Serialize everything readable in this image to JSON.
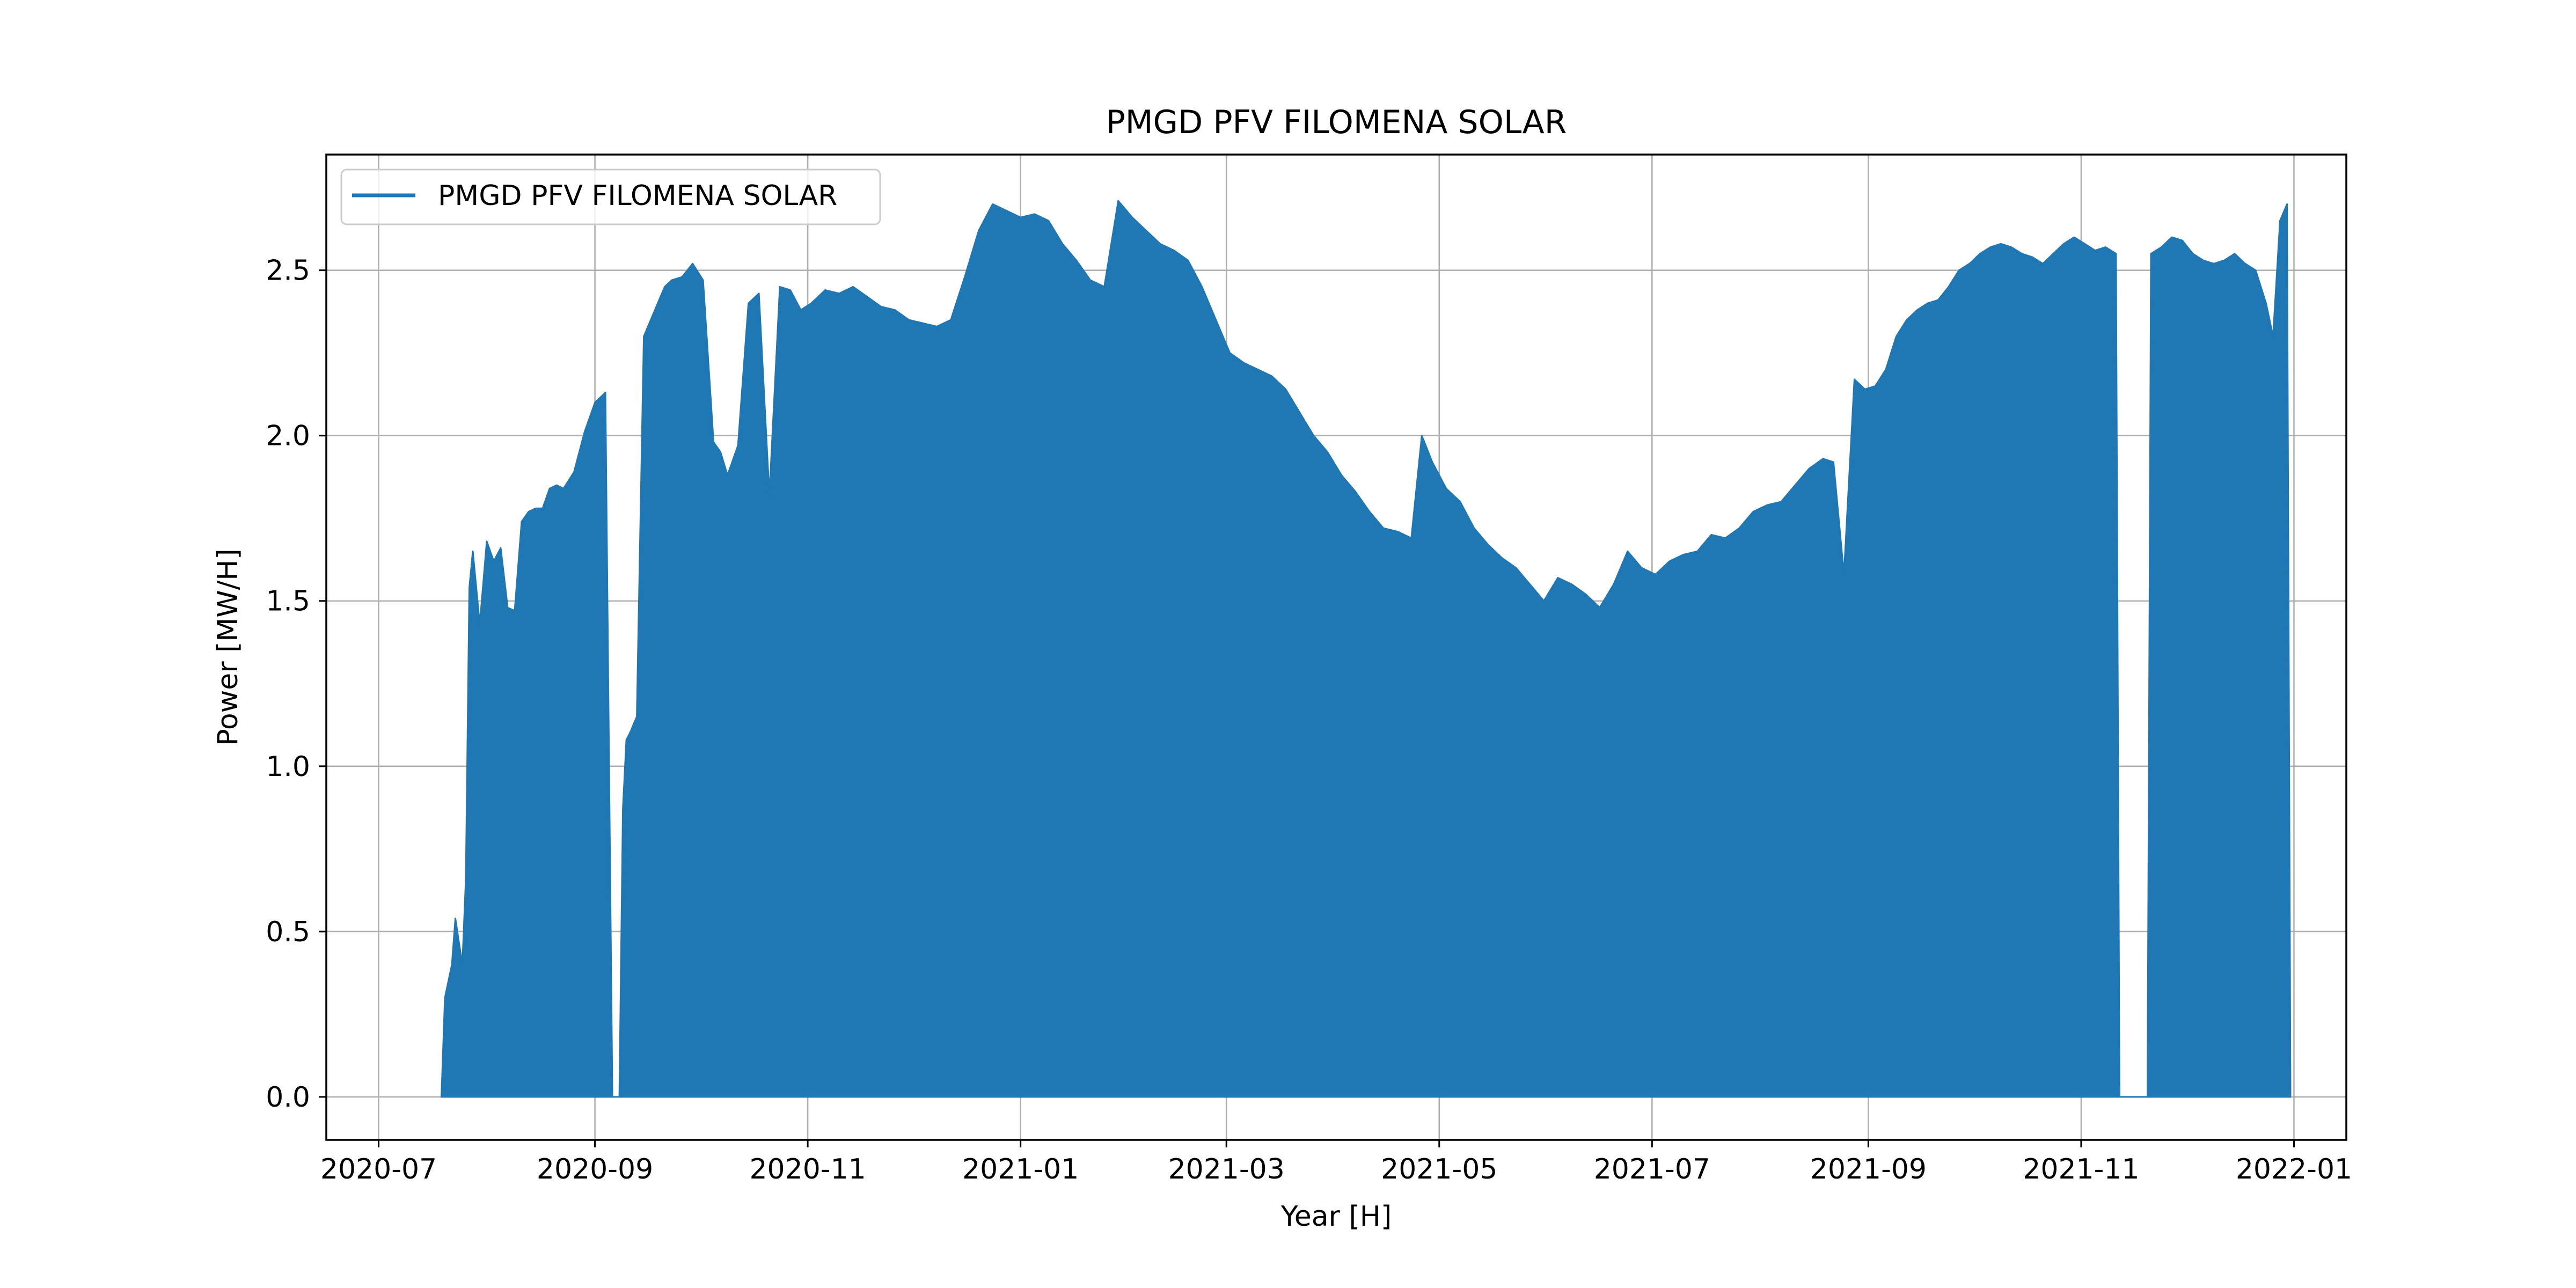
{
  "chart_data": {
    "type": "area",
    "title": "PMGD PFV FILOMENA SOLAR",
    "xlabel": "Year [H]",
    "ylabel": "Power [MW/H]",
    "xlim": [
      "2020-06-16",
      "2022-01-16"
    ],
    "ylim": [
      -0.13,
      2.85
    ],
    "x_ticks": [
      "2020-07",
      "2020-09",
      "2020-11",
      "2021-01",
      "2021-03",
      "2021-05",
      "2021-07",
      "2021-09",
      "2021-11",
      "2022-01"
    ],
    "y_ticks": [
      0.0,
      0.5,
      1.0,
      1.5,
      2.0,
      2.5
    ],
    "y_tick_labels": [
      "0.0",
      "0.5",
      "1.0",
      "1.5",
      "2.0",
      "2.5"
    ],
    "grid": true,
    "legend": {
      "position": "top-left",
      "entries": [
        "PMGD PFV FILOMENA SOLAR"
      ]
    },
    "series": [
      {
        "name": "PMGD PFV FILOMENA SOLAR",
        "color": "#1f77b4",
        "x": [
          "2020-07-19",
          "2020-07-20",
          "2020-07-22",
          "2020-07-23",
          "2020-07-25",
          "2020-07-26",
          "2020-07-27",
          "2020-07-28",
          "2020-07-30",
          "2020-08-01",
          "2020-08-03",
          "2020-08-05",
          "2020-08-07",
          "2020-08-09",
          "2020-08-11",
          "2020-08-13",
          "2020-08-15",
          "2020-08-17",
          "2020-08-19",
          "2020-08-21",
          "2020-08-23",
          "2020-08-26",
          "2020-08-29",
          "2020-09-01",
          "2020-09-04",
          "2020-09-06",
          "2020-09-08",
          "2020-09-09",
          "2020-09-10",
          "2020-09-11",
          "2020-09-13",
          "2020-09-15",
          "2020-09-17",
          "2020-09-19",
          "2020-09-21",
          "2020-09-23",
          "2020-09-26",
          "2020-09-29",
          "2020-10-02",
          "2020-10-05",
          "2020-10-07",
          "2020-10-09",
          "2020-10-12",
          "2020-10-15",
          "2020-10-18",
          "2020-10-21",
          "2020-10-24",
          "2020-10-27",
          "2020-10-30",
          "2020-11-02",
          "2020-11-06",
          "2020-11-10",
          "2020-11-14",
          "2020-11-18",
          "2020-11-22",
          "2020-11-26",
          "2020-11-30",
          "2020-12-04",
          "2020-12-08",
          "2020-12-12",
          "2020-12-16",
          "2020-12-20",
          "2020-12-24",
          "2020-12-28",
          "2021-01-01",
          "2021-01-05",
          "2021-01-09",
          "2021-01-13",
          "2021-01-17",
          "2021-01-21",
          "2021-01-25",
          "2021-01-29",
          "2021-02-02",
          "2021-02-06",
          "2021-02-10",
          "2021-02-14",
          "2021-02-18",
          "2021-02-22",
          "2021-02-26",
          "2021-03-02",
          "2021-03-06",
          "2021-03-10",
          "2021-03-14",
          "2021-03-18",
          "2021-03-22",
          "2021-03-26",
          "2021-03-30",
          "2021-04-03",
          "2021-04-07",
          "2021-04-11",
          "2021-04-15",
          "2021-04-19",
          "2021-04-23",
          "2021-04-26",
          "2021-04-29",
          "2021-05-03",
          "2021-05-07",
          "2021-05-11",
          "2021-05-15",
          "2021-05-19",
          "2021-05-23",
          "2021-05-27",
          "2021-05-31",
          "2021-06-04",
          "2021-06-08",
          "2021-06-12",
          "2021-06-16",
          "2021-06-20",
          "2021-06-24",
          "2021-06-28",
          "2021-07-02",
          "2021-07-06",
          "2021-07-10",
          "2021-07-14",
          "2021-07-18",
          "2021-07-22",
          "2021-07-26",
          "2021-07-30",
          "2021-08-03",
          "2021-08-07",
          "2021-08-11",
          "2021-08-15",
          "2021-08-19",
          "2021-08-22",
          "2021-08-25",
          "2021-08-28",
          "2021-08-31",
          "2021-09-03",
          "2021-09-06",
          "2021-09-09",
          "2021-09-12",
          "2021-09-15",
          "2021-09-18",
          "2021-09-21",
          "2021-09-24",
          "2021-09-27",
          "2021-09-30",
          "2021-10-03",
          "2021-10-06",
          "2021-10-09",
          "2021-10-12",
          "2021-10-15",
          "2021-10-18",
          "2021-10-21",
          "2021-10-24",
          "2021-10-27",
          "2021-10-30",
          "2021-11-02",
          "2021-11-05",
          "2021-11-08",
          "2021-11-11",
          "2021-11-12",
          "2021-11-20",
          "2021-11-21",
          "2021-11-24",
          "2021-11-27",
          "2021-11-30",
          "2021-12-03",
          "2021-12-06",
          "2021-12-09",
          "2021-12-12",
          "2021-12-15",
          "2021-12-18",
          "2021-12-21",
          "2021-12-24",
          "2021-12-26",
          "2021-12-28",
          "2021-12-30",
          "2021-12-31"
        ],
        "y": [
          0.0,
          0.3,
          0.4,
          0.54,
          0.4,
          0.66,
          1.54,
          1.65,
          1.43,
          1.68,
          1.62,
          1.66,
          1.48,
          1.47,
          1.74,
          1.77,
          1.78,
          1.78,
          1.84,
          1.85,
          1.84,
          1.89,
          2.01,
          2.1,
          2.13,
          0.0,
          0.0,
          0.87,
          1.08,
          1.1,
          1.15,
          2.3,
          2.35,
          2.4,
          2.45,
          2.47,
          2.48,
          2.52,
          2.47,
          1.98,
          1.95,
          1.88,
          1.97,
          2.4,
          2.43,
          1.82,
          2.45,
          2.44,
          2.38,
          2.4,
          2.44,
          2.43,
          2.45,
          2.42,
          2.39,
          2.38,
          2.35,
          2.34,
          2.33,
          2.35,
          2.48,
          2.62,
          2.7,
          2.68,
          2.66,
          2.67,
          2.65,
          2.58,
          2.53,
          2.47,
          2.45,
          2.71,
          2.66,
          2.62,
          2.58,
          2.56,
          2.53,
          2.45,
          2.35,
          2.25,
          2.22,
          2.2,
          2.18,
          2.14,
          2.07,
          2.0,
          1.95,
          1.88,
          1.83,
          1.77,
          1.72,
          1.71,
          1.69,
          2.0,
          1.92,
          1.84,
          1.8,
          1.72,
          1.67,
          1.63,
          1.6,
          1.55,
          1.5,
          1.57,
          1.55,
          1.52,
          1.48,
          1.55,
          1.65,
          1.6,
          1.58,
          1.62,
          1.64,
          1.65,
          1.7,
          1.69,
          1.72,
          1.77,
          1.79,
          1.8,
          1.85,
          1.9,
          1.93,
          1.92,
          1.58,
          2.17,
          2.14,
          2.15,
          2.2,
          2.3,
          2.35,
          2.38,
          2.4,
          2.41,
          2.45,
          2.5,
          2.52,
          2.55,
          2.57,
          2.58,
          2.57,
          2.55,
          2.54,
          2.52,
          2.55,
          2.58,
          2.6,
          2.58,
          2.56,
          2.57,
          2.55,
          0.0,
          0.0,
          2.55,
          2.57,
          2.6,
          2.59,
          2.55,
          2.53,
          2.52,
          2.53,
          2.55,
          2.52,
          2.5,
          2.4,
          2.3,
          2.65,
          2.7,
          0.0
        ]
      }
    ]
  }
}
